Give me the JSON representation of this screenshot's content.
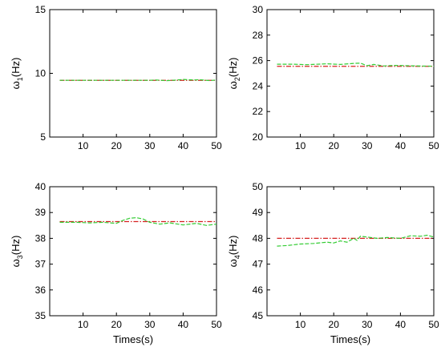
{
  "chart_data": [
    {
      "type": "line",
      "ylabel": {
        "symbol": "ω",
        "subscript": "1",
        "unit": "(Hz)"
      },
      "xlabel": "",
      "xlim": [
        0,
        50
      ],
      "ylim": [
        5,
        15
      ],
      "xticks": [
        "10",
        "20",
        "30",
        "40",
        "50"
      ],
      "yticks": [
        "5",
        "10",
        "15"
      ],
      "reference": {
        "value": 9.45,
        "x_range": [
          3,
          50
        ],
        "color": "#d62020",
        "style": "dash-dot"
      },
      "series": [
        {
          "color": "#33cc33",
          "style": "dashed",
          "x": [
            3,
            10,
            20,
            28,
            30,
            32,
            35,
            38,
            40,
            43,
            45,
            48,
            50
          ],
          "y": [
            9.45,
            9.45,
            9.45,
            9.45,
            9.45,
            9.48,
            9.42,
            9.47,
            9.52,
            9.48,
            9.5,
            9.43,
            9.48
          ]
        }
      ]
    },
    {
      "type": "line",
      "ylabel": {
        "symbol": "ω",
        "subscript": "2",
        "unit": "(Hz)"
      },
      "xlabel": "",
      "xlim": [
        0,
        50
      ],
      "ylim": [
        20,
        30
      ],
      "xticks": [
        "10",
        "20",
        "30",
        "40",
        "50"
      ],
      "yticks": [
        "20",
        "22",
        "24",
        "26",
        "28",
        "30"
      ],
      "reference": {
        "value": 25.55,
        "x_range": [
          3,
          50
        ],
        "color": "#d62020",
        "style": "dash-dot"
      },
      "series": [
        {
          "color": "#33cc33",
          "style": "dashed",
          "x": [
            3,
            8,
            12,
            18,
            22,
            26,
            28,
            30,
            32,
            35,
            38,
            42,
            46,
            50
          ],
          "y": [
            25.72,
            25.72,
            25.68,
            25.75,
            25.7,
            25.78,
            25.8,
            25.6,
            25.7,
            25.58,
            25.62,
            25.6,
            25.57,
            25.56
          ]
        }
      ]
    },
    {
      "type": "line",
      "ylabel": {
        "symbol": "ω",
        "subscript": "3",
        "unit": "(Hz)"
      },
      "xlabel": "Times(s)",
      "xlim": [
        0,
        50
      ],
      "ylim": [
        35,
        40
      ],
      "xticks": [
        "10",
        "20",
        "30",
        "40",
        "50"
      ],
      "yticks": [
        "35",
        "36",
        "37",
        "38",
        "39",
        "40"
      ],
      "reference": {
        "value": 38.65,
        "x_range": [
          3,
          50
        ],
        "color": "#d62020",
        "style": "dash-dot"
      },
      "series": [
        {
          "color": "#33cc33",
          "style": "dashed",
          "x": [
            3,
            8,
            12,
            16,
            20,
            22,
            24,
            26,
            28,
            30,
            33,
            36,
            40,
            44,
            47,
            50
          ],
          "y": [
            38.62,
            38.62,
            38.6,
            38.62,
            38.58,
            38.7,
            38.78,
            38.8,
            38.75,
            38.62,
            38.55,
            38.6,
            38.52,
            38.58,
            38.5,
            38.55
          ]
        }
      ]
    },
    {
      "type": "line",
      "ylabel": {
        "symbol": "ω",
        "subscript": "4",
        "unit": "(Hz)"
      },
      "xlabel": "Times(s)",
      "xlim": [
        0,
        50
      ],
      "ylim": [
        45,
        50
      ],
      "xticks": [
        "10",
        "20",
        "30",
        "40",
        "50"
      ],
      "yticks": [
        "45",
        "46",
        "47",
        "48",
        "49",
        "50"
      ],
      "reference": {
        "value": 48.0,
        "x_range": [
          3,
          50
        ],
        "color": "#d62020",
        "style": "dash-dot"
      },
      "series": [
        {
          "color": "#33cc33",
          "style": "dashed",
          "x": [
            3,
            6,
            10,
            14,
            18,
            20,
            22,
            24,
            26,
            27,
            28,
            30,
            33,
            36,
            40,
            43,
            46,
            48,
            50
          ],
          "y": [
            47.7,
            47.72,
            47.78,
            47.8,
            47.85,
            47.82,
            47.9,
            47.85,
            48.0,
            47.92,
            48.08,
            48.05,
            48.0,
            48.03,
            48.0,
            48.1,
            48.08,
            48.12,
            48.05
          ]
        }
      ]
    }
  ]
}
